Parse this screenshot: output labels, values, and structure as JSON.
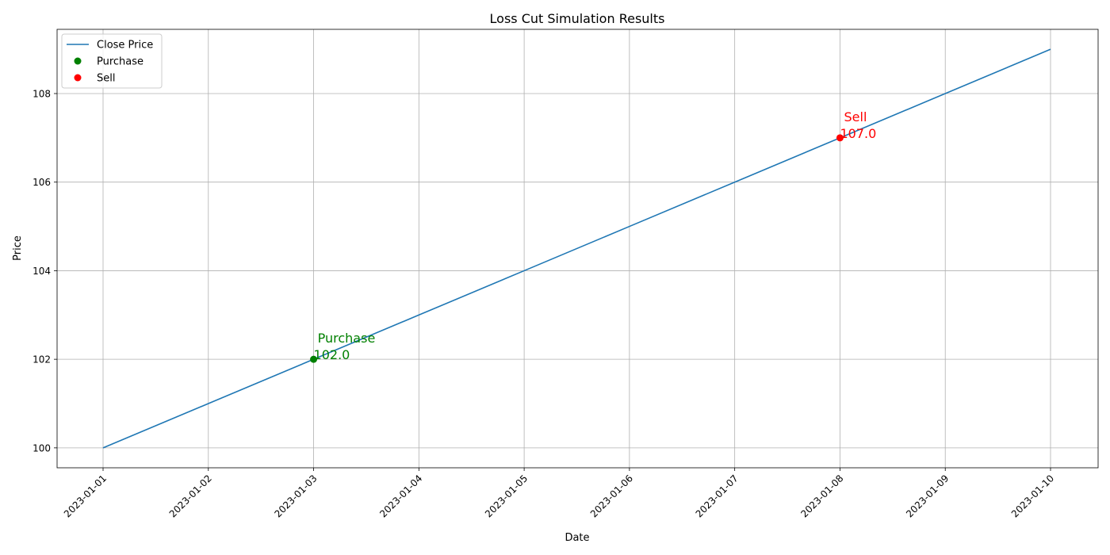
{
  "chart_data": {
    "type": "line",
    "title": "Loss Cut Simulation Results",
    "xlabel": "Date",
    "ylabel": "Price",
    "x": [
      "2023-01-01",
      "2023-01-02",
      "2023-01-03",
      "2023-01-04",
      "2023-01-05",
      "2023-01-06",
      "2023-01-07",
      "2023-01-08",
      "2023-01-09",
      "2023-01-10"
    ],
    "yticks": [
      100,
      102,
      104,
      106,
      108
    ],
    "ylim": [
      99.55,
      109.45
    ],
    "grid": true,
    "legend_position": "top-left",
    "series": [
      {
        "name": "Close Price",
        "kind": "line",
        "color": "#1f77b4",
        "values": [
          100,
          101,
          102,
          103,
          104,
          105,
          106,
          107,
          108,
          109
        ]
      }
    ],
    "markers": [
      {
        "name": "Purchase",
        "color": "#008000",
        "x": "2023-01-03",
        "y": 102,
        "label_line1": " Purchase",
        "label_line2": "102.0"
      },
      {
        "name": "Sell",
        "color": "#ff0000",
        "x": "2023-01-08",
        "y": 107,
        "label_line1": " Sell",
        "label_line2": "107.0"
      }
    ]
  }
}
